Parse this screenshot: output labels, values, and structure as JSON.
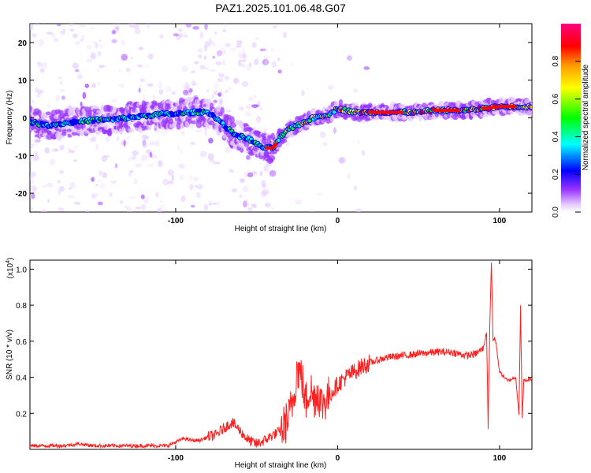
{
  "title": "PAZ1.2025.101.06.48.G07",
  "chart_data": [
    {
      "type": "heatmap",
      "xlabel": "Height of straight line (km)",
      "ylabel": "Frequency (Hz)",
      "xlim": [
        -190,
        120
      ],
      "ylim": [
        -25,
        25
      ],
      "xticks": [
        -100,
        0,
        100
      ],
      "xtick_labels": [
        "-100",
        "0",
        "100"
      ],
      "yticks": [
        -20,
        -10,
        0,
        10,
        20
      ],
      "ytick_labels": [
        "-20",
        "-10",
        "0",
        "10",
        "20"
      ],
      "colorbar": {
        "label": "Normalized spectral amplitude",
        "range": [
          0,
          1
        ],
        "ticks": [
          0.0,
          0.2,
          0.4,
          0.6,
          0.8
        ],
        "tick_labels": [
          "0.0",
          "0.2",
          "0.4",
          "0.6",
          "0.8"
        ],
        "colors": [
          "#e6ccff",
          "#9933ff",
          "#0000ff",
          "#00ffff",
          "#00ff00",
          "#ffff00",
          "#ff9900",
          "#ff0000",
          "#ff0080"
        ]
      },
      "ridge": {
        "x": [
          -190,
          -180,
          -170,
          -160,
          -150,
          -140,
          -130,
          -120,
          -110,
          -100,
          -90,
          -80,
          -75,
          -70,
          -65,
          -60,
          -55,
          -50,
          -45,
          -40,
          -35,
          -30,
          -25,
          -20,
          -15,
          -10,
          -5,
          0,
          5,
          10,
          20,
          30,
          40,
          50,
          60,
          70,
          80,
          90,
          100,
          110,
          120
        ],
        "y": [
          -1,
          -2,
          -1.5,
          -1,
          -0.5,
          -0.5,
          0,
          0.5,
          1,
          1,
          1.5,
          1.5,
          0,
          -2,
          -4,
          -5,
          -5.5,
          -7,
          -8,
          -8,
          -5,
          -3,
          -2,
          -1,
          0,
          0.5,
          1,
          2.5,
          2,
          1.5,
          1.5,
          1.5,
          1.5,
          1.5,
          2,
          2,
          2,
          2.5,
          3,
          3,
          3
        ]
      }
    },
    {
      "type": "line",
      "xlabel": "Height of straight line (km)",
      "ylabel": "SNR (10 * v/v)",
      "scale_label": "(x10^4)",
      "scale_base": "x10",
      "scale_exp": "4",
      "xlim": [
        -190,
        120
      ],
      "ylim": [
        0,
        1.05
      ],
      "xticks": [
        -100,
        0,
        100
      ],
      "xtick_labels": [
        "-100",
        "0",
        "100"
      ],
      "yticks": [
        0.2,
        0.4,
        0.6,
        0.8,
        1.0
      ],
      "ytick_labels": [
        "0.2",
        "0.4",
        "0.6",
        "0.8",
        "1.0"
      ],
      "series": [
        {
          "color": "#ff2020",
          "x": [
            -190,
            -180,
            -170,
            -160,
            -150,
            -140,
            -130,
            -120,
            -110,
            -105,
            -100,
            -95,
            -90,
            -85,
            -80,
            -75,
            -70,
            -65,
            -60,
            -55,
            -50,
            -45,
            -40,
            -35,
            -30,
            -27,
            -25,
            -22,
            -20,
            -17,
            -15,
            -12,
            -10,
            -5,
            0,
            5,
            10,
            15,
            20,
            30,
            40,
            50,
            60,
            70,
            80,
            85,
            90,
            92,
            93,
            94,
            95,
            96,
            97,
            98,
            100,
            105,
            110,
            112,
            113,
            114,
            115,
            120
          ],
          "y": [
            0.02,
            0.02,
            0.02,
            0.03,
            0.02,
            0.02,
            0.02,
            0.02,
            0.02,
            0.02,
            0.04,
            0.06,
            0.05,
            0.05,
            0.07,
            0.08,
            0.12,
            0.15,
            0.1,
            0.05,
            0.03,
            0.05,
            0.08,
            0.1,
            0.18,
            0.3,
            0.45,
            0.4,
            0.25,
            0.35,
            0.28,
            0.32,
            0.25,
            0.3,
            0.36,
            0.4,
            0.43,
            0.46,
            0.48,
            0.51,
            0.52,
            0.53,
            0.54,
            0.54,
            0.52,
            0.53,
            0.56,
            0.65,
            0.12,
            0.7,
            1.04,
            0.6,
            0.62,
            0.58,
            0.43,
            0.38,
            0.4,
            0.2,
            0.79,
            0.18,
            0.38,
            0.39
          ]
        }
      ]
    }
  ]
}
